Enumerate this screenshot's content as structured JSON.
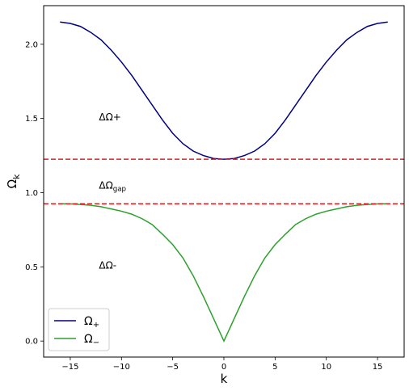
{
  "chart_data": {
    "type": "line",
    "xlabel": "k",
    "ylabel": "Ω",
    "ylabel_sub": "k",
    "xlim": [
      -17.6,
      17.6
    ],
    "ylim": [
      -0.108,
      2.26
    ],
    "xticks": [
      -15,
      -10,
      -5,
      0,
      5,
      10,
      15
    ],
    "xtick_labels": [
      "−15",
      "−10",
      "−5",
      "0",
      "5",
      "10",
      "15"
    ],
    "yticks": [
      0.0,
      0.5,
      1.0,
      1.5,
      2.0
    ],
    "ytick_labels": [
      "0.0",
      "0.5",
      "1.0",
      "1.5",
      "2.0"
    ],
    "grid": false,
    "legend_position": "lower-left",
    "series": [
      {
        "name": "Ω+",
        "name_base": "Ω",
        "name_sub": "+",
        "color": "#000080",
        "x": [
          -16,
          -15,
          -14,
          -13,
          -12,
          -11,
          -10,
          -9,
          -8,
          -7,
          -6,
          -5,
          -4,
          -3,
          -2,
          -1,
          0,
          1,
          2,
          3,
          4,
          5,
          6,
          7,
          8,
          9,
          10,
          11,
          12,
          13,
          14,
          15,
          16
        ],
        "y": [
          2.15,
          2.14,
          2.12,
          2.08,
          2.03,
          1.96,
          1.88,
          1.79,
          1.69,
          1.59,
          1.49,
          1.4,
          1.33,
          1.28,
          1.25,
          1.23,
          1.225,
          1.23,
          1.25,
          1.28,
          1.33,
          1.4,
          1.49,
          1.59,
          1.69,
          1.79,
          1.88,
          1.96,
          2.03,
          2.08,
          2.12,
          2.14,
          2.15
        ]
      },
      {
        "name": "Ω−",
        "name_base": "Ω",
        "name_sub": "−",
        "color": "#2ca02c",
        "x": [
          -16,
          -15,
          -14,
          -13,
          -12,
          -11,
          -10,
          -9,
          -8,
          -7,
          -6,
          -5,
          -4,
          -3,
          -2,
          -1,
          0,
          1,
          2,
          3,
          4,
          5,
          6,
          7,
          8,
          9,
          10,
          11,
          12,
          13,
          14,
          15,
          16
        ],
        "y": [
          0.925,
          0.924,
          0.92,
          0.915,
          0.905,
          0.89,
          0.875,
          0.855,
          0.825,
          0.785,
          0.72,
          0.65,
          0.56,
          0.44,
          0.3,
          0.15,
          0.0,
          0.15,
          0.3,
          0.44,
          0.56,
          0.65,
          0.72,
          0.785,
          0.825,
          0.855,
          0.875,
          0.89,
          0.905,
          0.915,
          0.92,
          0.924,
          0.925
        ]
      }
    ],
    "hlines": [
      {
        "y": 1.225,
        "color": "#e41a1c",
        "style": "dashed"
      },
      {
        "y": 0.925,
        "color": "#e41a1c",
        "style": "dashed"
      }
    ],
    "annotations": [
      {
        "text": "ΔΩ+",
        "x": -12.2,
        "y": 1.51
      },
      {
        "text": "ΔΩ",
        "sub": "gap",
        "x": -12.2,
        "y": 1.05
      },
      {
        "text": "ΔΩ-",
        "x": -12.2,
        "y": 0.51
      }
    ]
  }
}
